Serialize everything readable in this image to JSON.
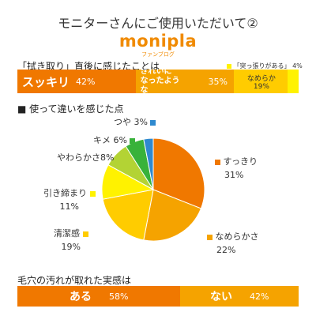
{
  "header": {
    "title": "モニターさんにご使用いただいて②",
    "brand": "monipla",
    "brand_sub": "ファンブログ"
  },
  "section1": {
    "label": "「拭き取り」直後に感じたことは"
  },
  "section2": {
    "label": "■ 使って違いを感じた点"
  },
  "section3": {
    "label": "毛穴の汚れが取れた実感は"
  },
  "chart_data": [
    {
      "type": "bar",
      "title": "「拭き取り」直後に感じたことは",
      "orientation": "horizontal-stacked",
      "series": [
        {
          "name": "スッキリ",
          "value": 42,
          "pct_label": "42%",
          "color": "#f07800"
        },
        {
          "name": "きれいになったような",
          "value": 35,
          "pct_label": "35%",
          "color": "#f5a300"
        },
        {
          "name": "なめらか",
          "value": 19,
          "pct_label": "19%",
          "color": "#ffcc00"
        },
        {
          "name": "「突っ張りがある」",
          "value": 4,
          "pct_label": "4%",
          "color": "#fff200"
        }
      ]
    },
    {
      "type": "pie",
      "title": "使って違いを感じた点",
      "slices": [
        {
          "name": "すっきり",
          "value": 31,
          "pct_label": "31%",
          "color": "#f07800"
        },
        {
          "name": "なめらかさ",
          "value": 22,
          "pct_label": "22%",
          "color": "#f5a300"
        },
        {
          "name": "清潔感",
          "value": 19,
          "pct_label": "19%",
          "color": "#ffcc00"
        },
        {
          "name": "引き締まり",
          "value": 11,
          "pct_label": "11%",
          "color": "#fff200"
        },
        {
          "name": "やわらかさ",
          "value": 8,
          "pct_label": "8%",
          "color": "#b3d334"
        },
        {
          "name": "キメ",
          "value": 6,
          "pct_label": "6%",
          "color": "#38b23a"
        },
        {
          "name": "つや",
          "value": 3,
          "pct_label": "3%",
          "color": "#2e89cf"
        }
      ]
    },
    {
      "type": "bar",
      "title": "毛穴の汚れが取れた実感は",
      "orientation": "horizontal-stacked",
      "series": [
        {
          "name": "ある",
          "value": 58,
          "pct_label": "58%",
          "color": "#f07800"
        },
        {
          "name": "ない",
          "value": 42,
          "pct_label": "42%",
          "color": "#f5a300"
        }
      ]
    }
  ]
}
